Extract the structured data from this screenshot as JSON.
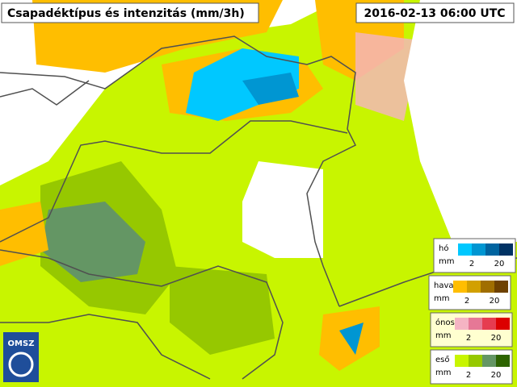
{
  "header": {
    "title": "Csapadéktípus és intenzitás (mm/3h)",
    "timestamp": "2016-02-13 06:00 UTC"
  },
  "logo": "OMSZ",
  "legend": [
    {
      "label": "hó",
      "unit": "mm",
      "low": "2",
      "high": "20",
      "colors": [
        "#00c8ff",
        "#0096d2",
        "#0064a0",
        "#003264"
      ]
    },
    {
      "label": "havas",
      "unit": "mm",
      "low": "2",
      "high": "20",
      "colors": [
        "#ffbe00",
        "#d2a000",
        "#a06e00",
        "#6e4100"
      ]
    },
    {
      "label": "ónos",
      "unit": "mm",
      "low": "2",
      "high": "20",
      "colors": [
        "#f5b4c3",
        "#e67896",
        "#e63c50",
        "#dc0000"
      ]
    },
    {
      "label": "eső",
      "unit": "mm",
      "low": "2",
      "high": "20",
      "colors": [
        "#c8f500",
        "#96c800",
        "#649664",
        "#2d6400"
      ]
    }
  ]
}
